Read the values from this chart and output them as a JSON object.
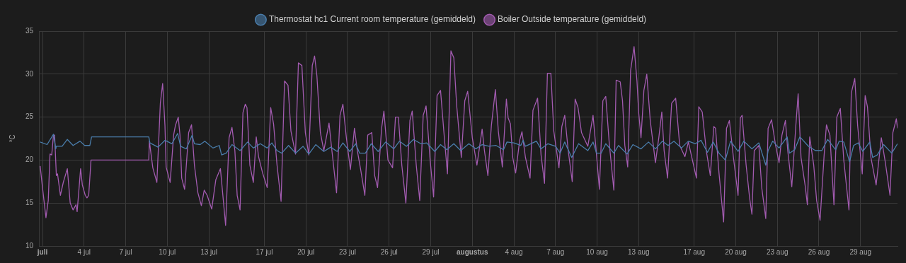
{
  "chart_data": {
    "type": "line",
    "ylabel": "°C",
    "legend": "top",
    "grid": true,
    "marker": "none",
    "line_style": "solid",
    "xlim": [
      "--06-30T18:00",
      "--08-31T16:00"
    ],
    "xticks": [
      {
        "value": "--07-01",
        "label": "juli"
      },
      {
        "value": "--07-04",
        "label": "4 jul"
      },
      {
        "value": "--07-07",
        "label": "7 jul"
      },
      {
        "value": "--07-10",
        "label": "10 jul"
      },
      {
        "value": "--07-13",
        "label": "13 jul"
      },
      {
        "value": "--07-17",
        "label": "17 jul"
      },
      {
        "value": "--07-20",
        "label": "20 jul"
      },
      {
        "value": "--07-23",
        "label": "23 jul"
      },
      {
        "value": "--07-26",
        "label": "26 jul"
      },
      {
        "value": "--07-29",
        "label": "29 jul"
      },
      {
        "value": "--08-01",
        "label": "augustus"
      },
      {
        "value": "--08-04",
        "label": "4 aug"
      },
      {
        "value": "--08-07",
        "label": "7 aug"
      },
      {
        "value": "--08-10",
        "label": "10 aug"
      },
      {
        "value": "--08-13",
        "label": "13 aug"
      },
      {
        "value": "--08-17",
        "label": "17 aug"
      },
      {
        "value": "--08-20",
        "label": "20 aug"
      },
      {
        "value": "--08-23",
        "label": "23 aug"
      },
      {
        "value": "--08-26",
        "label": "26 aug"
      },
      {
        "value": "--08-29",
        "label": "29 aug"
      }
    ],
    "ylim": [
      10,
      35
    ],
    "yticks": [
      10,
      15,
      20,
      25,
      30,
      35
    ],
    "series": [
      {
        "name": "Thermostat hc1 Current room temperature (gemiddeld)",
        "color": "#4a7dab",
        "x": [
          "--06-30T20:00",
          "--07-01T08:00",
          "--07-01T19:00",
          "--07-01T23:00",
          "--07-02T00:00",
          "--07-02T10:00",
          "--07-02T19:00",
          "--07-03T05:00",
          "--07-03T17:00",
          "--07-04T01:00",
          "--07-04T10:00",
          "--07-04T13:00",
          "--07-08T16:00",
          "--07-08T18:00",
          "--07-09T08:00",
          "--07-09T20:00",
          "--07-10T08:00",
          "--07-10T18:00",
          "--07-10T23:00",
          "--07-11T09:00",
          "--07-11T19:00",
          "--07-11T23:00",
          "--07-12T09:00",
          "--07-12T17:00",
          "--07-13T07:00",
          "--07-13T18:00",
          "--07-13T22:00",
          "--07-14T06:00",
          "--07-14T16:00",
          "--07-15T06:00",
          "--07-15T19:00",
          "--07-16T05:00",
          "--07-16T17:00",
          "--07-17T05:00",
          "--07-17T13:00",
          "--07-17T22:00",
          "--07-18T06:00",
          "--07-18T18:00",
          "--07-19T06:00",
          "--07-19T19:00",
          "--07-20T05:00",
          "--07-20T17:00",
          "--07-21T07:00",
          "--07-21T19:00",
          "--07-22T06:00",
          "--07-22T16:00",
          "--07-23T04:00",
          "--07-23T14:00",
          "--07-23T21:00",
          "--07-24T07:00",
          "--07-24T17:00",
          "--07-25T05:00",
          "--07-25T18:00",
          "--07-26T08:00",
          "--07-26T18:00",
          "--07-27T06:00",
          "--07-27T18:00",
          "--07-28T07:00",
          "--07-28T17:00",
          "--07-29T07:00",
          "--07-29T17:00",
          "--07-30T04:00",
          "--07-30T16:00",
          "--07-31T04:00",
          "--07-31T18:00",
          "--08-01T06:00",
          "--08-01T17:00",
          "--08-02T05:00",
          "--08-02T17:00",
          "--08-03T06:00",
          "--08-03T12:00",
          "--08-04T00:00",
          "--08-04T12:00",
          "--08-04T16:00",
          "--08-04T20:00",
          "--08-05T15:00",
          "--08-05T23:00",
          "--08-06T11:00",
          "--08-07T00:00",
          "--08-07T08:00",
          "--08-07T16:00",
          "--08-08T04:00",
          "--08-08T16:00",
          "--08-09T08:00",
          "--08-09T17:00",
          "--08-09T23:00",
          "--08-10T07:00",
          "--08-10T15:00",
          "--08-11T05:00",
          "--08-11T13:00",
          "--08-12T04:00",
          "--08-12T14:00",
          "--08-13T04:00",
          "--08-13T17:00",
          "--08-14T05:00",
          "--08-14T17:00",
          "--08-15T03:00",
          "--08-15T13:00",
          "--08-16T02:00",
          "--08-16T14:00",
          "--08-17T02:00",
          "--08-17T12:00",
          "--08-17T23:00",
          "--08-18T09:00",
          "--08-18T19:00",
          "--08-19T06:00",
          "--08-19T15:00",
          "--08-20T04:00",
          "--08-20T14:00",
          "--08-21T04:00",
          "--08-21T16:00",
          "--08-22T04:00",
          "--08-22T08:00",
          "--08-22T16:00",
          "--08-23T03:00",
          "--08-23T17:00",
          "--08-23T21:00",
          "--08-24T06:00",
          "--08-24T15:00",
          "--08-25T06:00",
          "--08-25T18:00",
          "--08-26T05:00",
          "--08-26T15:00",
          "--08-27T05:00",
          "--08-27T11:00",
          "--08-27T19:00",
          "--08-28T05:00",
          "--08-28T12:00",
          "--08-28T20:00",
          "--08-29T04:00",
          "--08-29T16:00",
          "--08-29T21:00",
          "--08-30T05:00",
          "--08-30T16:00",
          "--08-31T06:00",
          "--08-31T16:00"
        ],
        "values": [
          22.1,
          21.8,
          23.0,
          21.3,
          21.6,
          21.6,
          22.4,
          21.7,
          22.2,
          21.7,
          21.7,
          22.7,
          22.7,
          22.0,
          21.5,
          22.3,
          21.9,
          23.1,
          21.6,
          21.3,
          22.9,
          21.9,
          21.8,
          22.2,
          21.4,
          21.7,
          20.6,
          20.8,
          21.8,
          21.1,
          22.1,
          21.4,
          21.9,
          21.4,
          22.0,
          21.1,
          20.8,
          21.7,
          20.8,
          21.6,
          20.7,
          21.8,
          21.0,
          21.5,
          21.0,
          22.0,
          21.0,
          21.9,
          20.8,
          20.8,
          21.9,
          21.0,
          22.1,
          21.3,
          22.2,
          21.6,
          22.4,
          21.9,
          22.0,
          21.0,
          21.8,
          21.2,
          21.9,
          21.1,
          21.9,
          21.3,
          21.8,
          21.6,
          21.7,
          21.2,
          22.1,
          22.0,
          21.7,
          22.3,
          21.6,
          22.2,
          21.3,
          21.9,
          21.6,
          20.8,
          22.1,
          20.3,
          21.9,
          21.1,
          22.1,
          20.8,
          20.8,
          21.9,
          20.8,
          21.7,
          20.7,
          21.8,
          21.3,
          22.1,
          21.3,
          22.2,
          21.7,
          22.2,
          21.4,
          22.2,
          21.9,
          22.3,
          20.9,
          22.1,
          20.8,
          20.0,
          22.2,
          21.0,
          22.2,
          21.3,
          22.0,
          19.4,
          21.1,
          22.2,
          21.4,
          22.7,
          20.8,
          21.2,
          22.7,
          21.6,
          21.1,
          21.1,
          22.4,
          21.2,
          22.2,
          22.1,
          19.8,
          21.7,
          22.0,
          21.0,
          22.1,
          20.3,
          20.6,
          21.8,
          20.8,
          21.9
        ]
      },
      {
        "name": "Boiler Outside temperature (gemiddeld)",
        "color": "#a25bb0",
        "x": [
          "--06-30T20:00",
          "--07-01T00:00",
          "--07-01T06:00",
          "--07-01T10:00",
          "--07-01T13:00",
          "--07-01T16:00",
          "--07-01T19:00",
          "--07-01T21:00",
          "--07-02T00:00",
          "--07-02T02:00",
          "--07-02T07:00",
          "--07-02T12:00",
          "--07-02T19:00",
          "--07-03T00:00",
          "--07-03T05:00",
          "--07-03T10:00",
          "--07-03T12:00",
          "--07-03T18:00",
          "--07-03T21:00",
          "--07-04T02:00",
          "--07-04T05:00",
          "--07-04T08:00",
          "--07-04T12:00",
          "--07-08T16:00",
          "--07-08T17:00",
          "--07-08T23:00",
          "--07-09T06:00",
          "--07-09T12:00",
          "--07-09T16:00",
          "--07-09T20:00",
          "--07-09T22:00",
          "--07-10T05:00",
          "--07-10T11:00",
          "--07-10T14:00",
          "--07-10T19:00",
          "--07-10T22:00",
          "--07-11T01:00",
          "--07-11T06:00",
          "--07-11T13:00",
          "--07-11T18:00",
          "--07-11T23:00",
          "--07-12T05:00",
          "--07-12T11:00",
          "--07-12T16:00",
          "--07-12T21:00",
          "--07-13T05:00",
          "--07-13T12:00",
          "--07-13T20:00",
          "--07-13T23:00",
          "--07-14T05:00",
          "--07-14T11:00",
          "--07-14T16:00",
          "--07-14T21:00",
          "--07-15T01:00",
          "--07-15T06:00",
          "--07-15T11:00",
          "--07-15T15:00",
          "--07-15T18:00",
          "--07-15T23:00",
          "--07-16T05:00",
          "--07-16T10:00",
          "--07-16T14:00",
          "--07-16T21:00",
          "--07-17T05:00",
          "--07-17T11:00",
          "--07-17T16:00",
          "--07-17T22:00",
          "--07-18T05:00",
          "--07-18T11:00",
          "--07-18T17:00",
          "--07-18T22:00",
          "--07-19T06:00",
          "--07-19T11:00",
          "--07-19T17:00",
          "--07-19T23:00",
          "--07-20T05:00",
          "--07-20T11:00",
          "--07-20T15:00",
          "--07-20T19:00",
          "--07-21T01:00",
          "--07-21T07:00",
          "--07-21T16:00",
          "--07-21T20:00",
          "--07-22T05:00",
          "--07-22T11:00",
          "--07-22T16:00",
          "--07-22T22:00",
          "--07-23T05:00",
          "--07-23T12:00",
          "--07-23T17:00",
          "--07-23T23:00",
          "--07-24T06:00",
          "--07-24T11:00",
          "--07-24T18:00",
          "--07-24T23:00",
          "--07-25T04:00",
          "--07-25T11:00",
          "--07-25T15:00",
          "--07-25T22:00",
          "--07-26T06:00",
          "--07-26T11:00",
          "--07-26T16:00",
          "--07-26T22:00",
          "--07-27T05:00",
          "--07-27T12:00",
          "--07-27T16:00",
          "--07-27T23:00",
          "--07-28T05:00",
          "--07-28T11:00",
          "--07-28T16:00",
          "--07-28T23:00",
          "--07-29T05:00",
          "--07-29T11:00",
          "--07-29T17:00",
          "--07-30T00:00",
          "--07-30T05:00",
          "--07-30T11:00",
          "--07-30T16:00",
          "--07-30T21:00",
          "--07-31T05:00",
          "--07-31T11:00",
          "--07-31T16:00",
          "--08-01T00:00",
          "--08-01T08:00",
          "--08-01T17:00",
          "--08-01T21:00",
          "--08-02T03:00",
          "--08-02T09:00",
          "--08-02T16:00",
          "--08-02T21:00",
          "--08-03T04:00",
          "--08-03T11:00",
          "--08-03T14:00",
          "--08-03T18:00",
          "--08-03T22:00",
          "--08-04T03:00",
          "--08-04T10:00",
          "--08-04T14:00",
          "--08-04T20:00",
          "--08-05T04:00",
          "--08-05T09:00",
          "--08-05T17:00",
          "--08-05T23:00",
          "--08-06T05:00",
          "--08-06T10:00",
          "--08-06T16:00",
          "--08-06T21:00",
          "--08-07T06:00",
          "--08-07T11:00",
          "--08-07T16:00",
          "--08-07T22:00",
          "--08-08T05:00",
          "--08-08T10:00",
          "--08-08T15:00",
          "--08-08T21:00",
          "--08-09T08:00",
          "--08-09T17:00",
          "--08-09T22:00",
          "--08-10T04:00",
          "--08-10T10:00",
          "--08-10T15:00",
          "--08-10T21:00",
          "--08-11T05:00",
          "--08-11T09:00",
          "--08-11T16:00",
          "--08-11T20:00",
          "--08-12T00:00",
          "--08-12T05:00",
          "--08-12T10:00",
          "--08-12T16:00",
          "--08-12T21:00",
          "--08-13T00:00",
          "--08-13T04:00",
          "--08-13T09:00",
          "--08-13T14:00",
          "--08-13T20:00",
          "--08-14T05:00",
          "--08-14T11:00",
          "--08-14T16:00",
          "--08-14T20:00",
          "--08-15T02:00",
          "--08-15T09:00",
          "--08-15T16:00",
          "--08-15T23:00",
          "--08-16T08:00",
          "--08-16T14:00",
          "--08-17T00:00",
          "--08-17T04:00",
          "--08-17T08:00",
          "--08-17T14:00",
          "--08-17T21:00",
          "--08-18T04:00",
          "--08-18T10:00",
          "--08-18T13:00",
          "--08-18T19:00",
          "--08-19T03:00",
          "--08-19T08:00",
          "--08-19T13:00",
          "--08-19T20:00",
          "--08-20T04:00",
          "--08-20T08:00",
          "--08-20T11:00",
          "--08-20T18:00",
          "--08-21T00:00",
          "--08-21T04:00",
          "--08-21T08:00",
          "--08-21T16:00",
          "--08-21T21:00",
          "--08-22T04:00",
          "--08-22T08:00",
          "--08-22T14:00",
          "--08-22T21:00",
          "--08-23T03:00",
          "--08-23T08:00",
          "--08-23T14:00",
          "--08-23T18:00",
          "--08-24T01:00",
          "--08-24T08:00",
          "--08-24T12:00",
          "--08-24T17:00",
          "--08-25T00:00",
          "--08-25T04:00",
          "--08-25T08:00",
          "--08-25T15:00",
          "--08-25T20:00",
          "--08-26T02:00",
          "--08-26T09:00",
          "--08-26T13:00",
          "--08-26T19:00",
          "--08-27T02:00",
          "--08-27T07:00",
          "--08-27T13:00",
          "--08-27T19:00",
          "--08-28T04:00",
          "--08-28T08:00",
          "--08-28T14:00",
          "--08-28T19:00",
          "--08-29T03:00",
          "--08-29T08:00",
          "--08-29T12:00",
          "--08-29T18:00",
          "--08-30T03:00",
          "--08-30T12:00",
          "--08-30T19:00",
          "--08-31T03:00",
          "--08-31T08:00",
          "--08-31T14:00",
          "--08-31T16:00"
        ],
        "values": [
          19.3,
          16.8,
          13.3,
          15.3,
          20.7,
          20.6,
          22.9,
          22.9,
          18.2,
          18.4,
          15.9,
          17.4,
          19.0,
          15.0,
          14.2,
          14.8,
          14.0,
          19.0,
          17.1,
          15.9,
          15.6,
          15.9,
          20.0,
          20.0,
          22.2,
          19.1,
          17.4,
          26.6,
          28.9,
          24.0,
          19.2,
          17.4,
          22.9,
          24.0,
          25.0,
          22.9,
          17.9,
          16.6,
          23.2,
          24.1,
          19.4,
          16.2,
          14.7,
          16.5,
          15.9,
          14.3,
          17.7,
          19.0,
          16.8,
          12.4,
          22.6,
          23.8,
          21.1,
          15.9,
          14.2,
          25.5,
          26.5,
          26.1,
          19.4,
          17.4,
          22.7,
          20.4,
          18.5,
          16.8,
          26.1,
          24.2,
          19.4,
          15.2,
          29.2,
          28.7,
          23.4,
          20.7,
          31.3,
          31.0,
          23.2,
          20.6,
          31.0,
          32.1,
          29.8,
          23.2,
          21.1,
          24.3,
          21.7,
          16.2,
          25.2,
          26.5,
          22.6,
          18.9,
          23.7,
          21.1,
          18.8,
          15.9,
          22.9,
          23.2,
          18.2,
          16.8,
          23.7,
          25.7,
          20.0,
          19.1,
          25.0,
          25.0,
          19.4,
          15.0,
          24.6,
          25.7,
          19.4,
          15.3,
          25.2,
          26.3,
          20.0,
          15.7,
          27.5,
          28.1,
          22.3,
          18.4,
          32.7,
          31.9,
          26.3,
          20.3,
          26.9,
          28.0,
          22.6,
          19.4,
          23.6,
          21.1,
          18.2,
          24.0,
          28.2,
          23.4,
          19.2,
          27.1,
          24.9,
          24.2,
          20.3,
          18.5,
          22.3,
          23.3,
          20.3,
          17.9,
          25.8,
          27.2,
          20.6,
          17.3,
          30.1,
          30.1,
          23.4,
          19.1,
          23.9,
          25.2,
          21.1,
          17.5,
          27.1,
          26.1,
          23.2,
          21.6,
          25.2,
          21.4,
          16.6,
          26.9,
          27.4,
          22.0,
          16.5,
          29.3,
          29.1,
          26.9,
          21.7,
          19.2,
          30.4,
          33.2,
          29.2,
          25.5,
          22.6,
          28.1,
          30.0,
          24.6,
          19.7,
          22.7,
          25.6,
          21.1,
          17.9,
          26.6,
          27.2,
          21.7,
          20.4,
          22.1,
          19.1,
          17.9,
          26.2,
          25.6,
          21.1,
          18.2,
          23.9,
          23.7,
          18.5,
          12.8,
          23.7,
          24.6,
          20.3,
          15.9,
          24.9,
          25.2,
          19.4,
          15.6,
          13.7,
          21.1,
          21.7,
          16.8,
          13.2,
          23.7,
          24.7,
          21.7,
          19.7,
          22.9,
          24.6,
          21.1,
          16.9,
          24.0,
          27.7,
          20.3,
          17.1,
          14.8,
          22.7,
          19.4,
          15.3,
          13.0,
          20.6,
          24.1,
          22.9,
          14.8,
          25.0,
          26.0,
          20.0,
          14.2,
          27.8,
          29.5,
          24.0,
          18.4,
          27.5,
          26.2,
          20.3,
          17.1,
          22.6,
          19.7,
          15.9,
          23.2,
          24.8,
          23.7
        ]
      }
    ]
  }
}
